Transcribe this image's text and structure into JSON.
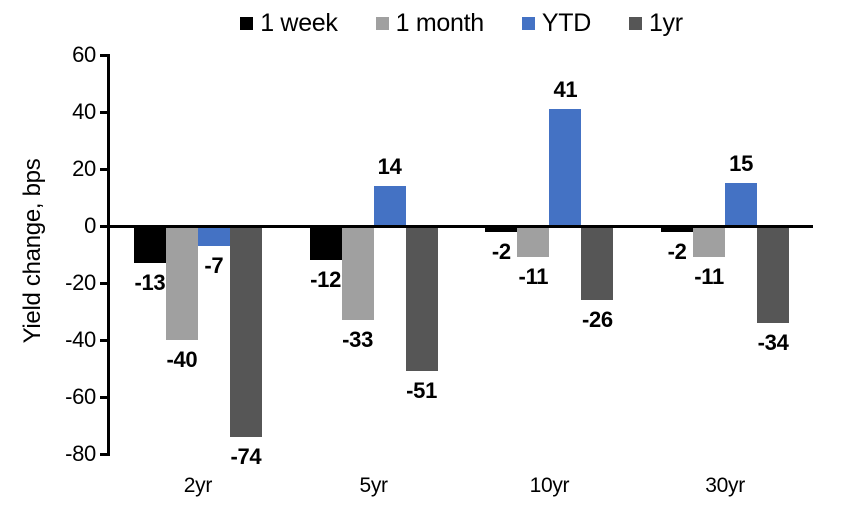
{
  "chart_data": {
    "type": "bar",
    "title": "",
    "xlabel": "",
    "ylabel": "Yield change, bps",
    "categories": [
      "2yr",
      "5yr",
      "10yr",
      "30yr"
    ],
    "series": [
      {
        "name": "1 week",
        "color": "#000000",
        "values": [
          -13,
          -12,
          -2,
          -2
        ]
      },
      {
        "name": "1 month",
        "color": "#A0A0A0",
        "values": [
          -40,
          -33,
          -11,
          -11
        ]
      },
      {
        "name": "YTD",
        "color": "#4472C4",
        "values": [
          -7,
          14,
          41,
          15
        ]
      },
      {
        "name": "1yr",
        "color": "#565656",
        "values": [
          -74,
          -51,
          -26,
          -34
        ]
      }
    ],
    "ylim": [
      -80,
      60
    ],
    "yticks": [
      60,
      40,
      20,
      0,
      -20,
      -40,
      -60,
      -80
    ],
    "grid": false,
    "legend_position": "top",
    "value_labels": "outside-end",
    "axis_color": "#000000",
    "background_color": "#FFFFFF"
  }
}
